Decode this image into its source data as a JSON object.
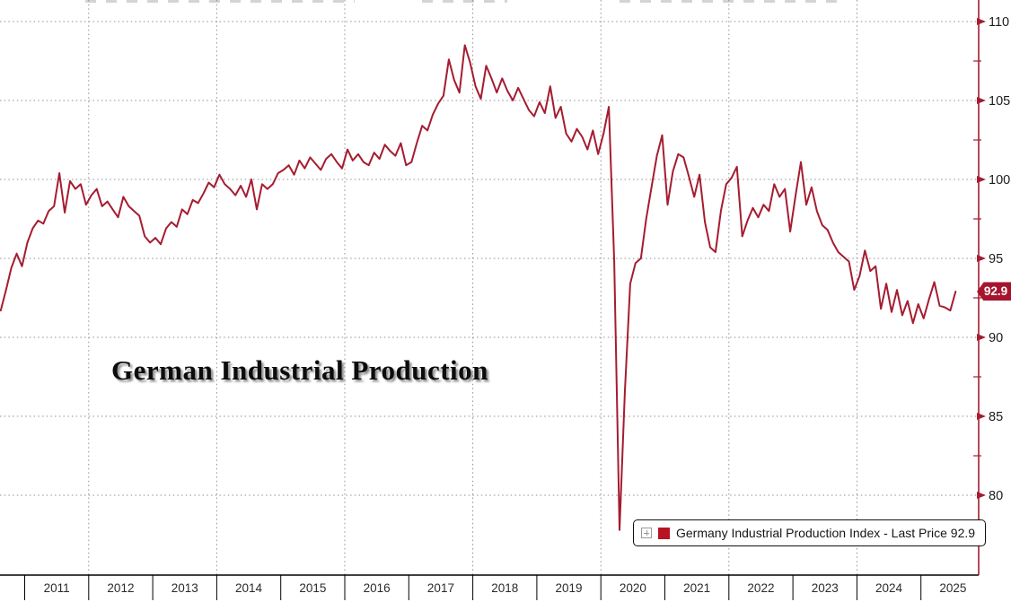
{
  "chart": {
    "title": "German Industrial Production",
    "badge": {
      "text": "92.9"
    },
    "legend": {
      "expander_icon": "plus-box-icon",
      "swatch_color": "#b71423",
      "label": "Germany Industrial Production Index - Last Price 92.9"
    },
    "colors": {
      "line": "#a51c30",
      "axis_red": "#a51c30",
      "badge_bg": "#a6152e",
      "badge_text": "#ffffff",
      "grid": "#8f8f8f",
      "axis_black": "#000000",
      "tick_label": "#222222"
    },
    "y_axis_labels": [
      "110",
      "105",
      "100",
      "95",
      "90",
      "85",
      "80"
    ],
    "x_axis_labels": [
      "2011",
      "2012",
      "2013",
      "2014",
      "2015",
      "2016",
      "2017",
      "2018",
      "2019",
      "2020",
      "2021",
      "2022",
      "2023",
      "2024",
      "2025"
    ]
  },
  "chart_data": {
    "type": "line",
    "title": "German Industrial Production",
    "legend": "Germany Industrial Production Index - Last Price 92.9",
    "legend_position": "bottom-right",
    "grid": "dotted",
    "last_price": 92.9,
    "frequency": "monthly",
    "x_start": "2010-08",
    "x_end": "2025-07",
    "x_range": [
      2010.6,
      2025.6
    ],
    "ylim": [
      74.5,
      111.4
    ],
    "y_gridlines": [
      110,
      105,
      100,
      95,
      90,
      85,
      80
    ],
    "y_minor_ticks": [
      107.5,
      102.5,
      97.5,
      92.5,
      87.5,
      82.5,
      77.5
    ],
    "x_gridline_years": [
      2012,
      2014,
      2016,
      2018,
      2020,
      2022,
      2024
    ],
    "x_tick_years": [
      2011,
      2012,
      2013,
      2014,
      2015,
      2016,
      2017,
      2018,
      2019,
      2020,
      2021,
      2022,
      2023,
      2024,
      2025
    ],
    "series": [
      {
        "name": "Germany Industrial Production Index",
        "color": "#a51c30",
        "values": [
          91.7,
          93.0,
          94.4,
          95.3,
          94.5,
          96.0,
          96.9,
          97.4,
          97.2,
          98.0,
          98.3,
          100.4,
          97.9,
          99.9,
          99.4,
          99.7,
          98.4,
          99.0,
          99.4,
          98.3,
          98.6,
          98.1,
          97.6,
          98.9,
          98.3,
          98.0,
          97.7,
          96.4,
          96.0,
          96.3,
          95.9,
          96.9,
          97.3,
          97.0,
          98.1,
          97.8,
          98.7,
          98.5,
          99.1,
          99.8,
          99.5,
          100.3,
          99.7,
          99.4,
          99.0,
          99.6,
          98.9,
          100.0,
          98.1,
          99.7,
          99.4,
          99.7,
          100.4,
          100.6,
          100.9,
          100.3,
          101.2,
          100.7,
          101.4,
          101.0,
          100.6,
          101.3,
          101.6,
          101.1,
          100.7,
          101.9,
          101.2,
          101.6,
          101.1,
          100.9,
          101.7,
          101.3,
          102.2,
          101.8,
          101.5,
          102.3,
          100.9,
          101.1,
          102.3,
          103.4,
          103.1,
          104.1,
          104.8,
          105.3,
          107.6,
          106.3,
          105.5,
          108.5,
          107.4,
          105.9,
          105.1,
          107.2,
          106.4,
          105.5,
          106.4,
          105.6,
          105.0,
          105.8,
          105.1,
          104.4,
          104.0,
          104.9,
          104.2,
          105.9,
          103.9,
          104.6,
          102.9,
          102.4,
          103.2,
          102.7,
          101.9,
          103.1,
          101.6,
          102.9,
          104.6,
          94.8,
          77.8,
          86.5,
          93.4,
          94.7,
          95.0,
          97.5,
          99.5,
          101.5,
          102.8,
          98.4,
          100.5,
          101.6,
          101.4,
          100.2,
          98.9,
          100.3,
          97.3,
          95.7,
          95.4,
          98.0,
          99.7,
          100.1,
          100.8,
          96.4,
          97.4,
          98.2,
          97.6,
          98.4,
          98.0,
          99.7,
          98.9,
          99.4,
          96.7,
          99.0,
          101.1,
          98.4,
          99.5,
          98.0,
          97.1,
          96.8,
          96.0,
          95.4,
          95.1,
          94.8,
          93.0,
          93.9,
          95.5,
          94.2,
          94.5,
          91.8,
          93.4,
          91.6,
          93.0,
          91.4,
          92.3,
          90.9,
          92.1,
          91.2,
          92.4,
          93.5,
          92.0,
          91.9,
          91.7,
          92.9
        ]
      }
    ]
  }
}
